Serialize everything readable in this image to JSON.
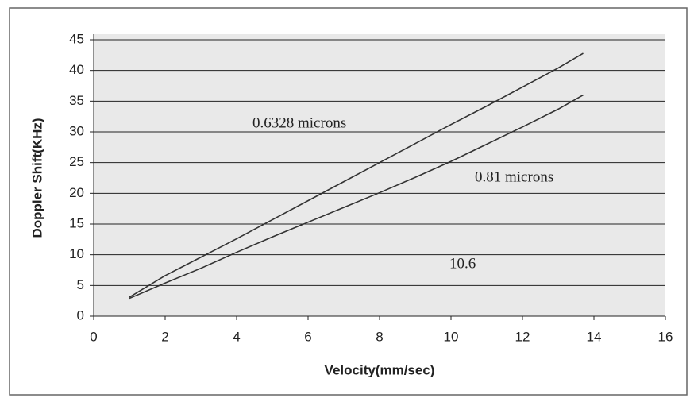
{
  "chart_data": {
    "type": "line",
    "xlabel": "Velocity(mm/sec)",
    "ylabel": "Doppler Shift(KHz)",
    "x": [
      1,
      2,
      3,
      4,
      5,
      6,
      7,
      8,
      9,
      10,
      11,
      12,
      13,
      13.7
    ],
    "series": [
      {
        "color": "#333333",
        "values": [
          3.1,
          6.6,
          9.6,
          12.6,
          15.7,
          18.8,
          21.9,
          25.0,
          28.1,
          31.2,
          34.2,
          37.3,
          40.4,
          42.8
        ]
      },
      {
        "color": "#333333",
        "values": [
          2.9,
          5.4,
          7.8,
          10.4,
          12.9,
          15.3,
          17.7,
          20.1,
          22.6,
          25.2,
          28.0,
          30.8,
          33.7,
          36.0
        ]
      }
    ],
    "annotations": [
      "0.6328 microns",
      "0.81 microns",
      "10.6"
    ],
    "xlim": [
      0,
      16
    ],
    "xticks": [
      0,
      2,
      4,
      6,
      8,
      10,
      12,
      14,
      16
    ],
    "ylim": [
      0,
      45
    ],
    "yticks": [
      0,
      5,
      10,
      15,
      20,
      25,
      30,
      35,
      40,
      45
    ],
    "grid": true
  }
}
